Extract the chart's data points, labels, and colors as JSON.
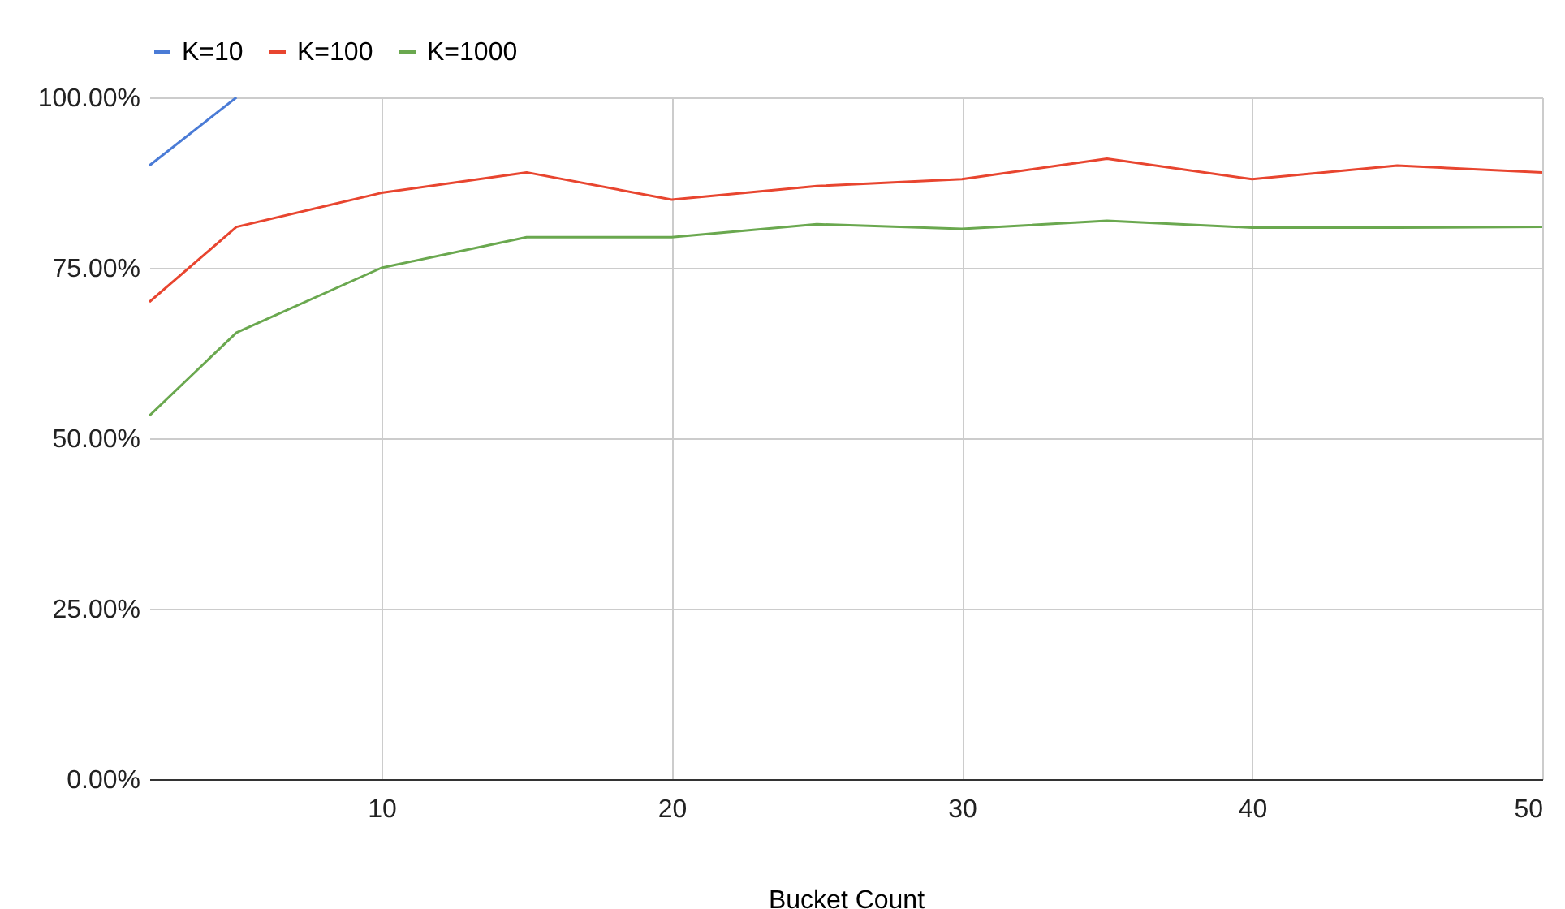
{
  "chart_data": {
    "type": "line",
    "xlabel": "Bucket Count",
    "x": [
      2,
      5,
      10,
      15,
      20,
      25,
      30,
      35,
      40,
      45,
      50
    ],
    "series": [
      {
        "name": "K=10",
        "color": "#4a7bd6",
        "values": [
          90,
          100,
          null,
          null,
          null,
          null,
          null,
          null,
          null,
          null,
          null
        ]
      },
      {
        "name": "K=100",
        "color": "#e8452f",
        "values": [
          70,
          81,
          86,
          89,
          85,
          87,
          88,
          91,
          88,
          90,
          89
        ]
      },
      {
        "name": "K=1000",
        "color": "#6aa84f",
        "values": [
          53.3,
          65.5,
          75,
          79.5,
          79.5,
          81.4,
          80.7,
          81.9,
          80.9,
          80.9,
          81
        ]
      }
    ],
    "xlim": [
      2,
      50
    ],
    "xticks": [
      10,
      20,
      30,
      40,
      50
    ],
    "ylim": [
      0,
      100
    ],
    "yticks": [
      {
        "value": 0,
        "label": "0.00%"
      },
      {
        "value": 25,
        "label": "25.00%"
      },
      {
        "value": 50,
        "label": "50.00%"
      },
      {
        "value": 75,
        "label": "75.00%"
      },
      {
        "value": 100,
        "label": "100.00%"
      }
    ],
    "grid": true,
    "legend": "top",
    "marker": "none",
    "line_style": "solid"
  }
}
